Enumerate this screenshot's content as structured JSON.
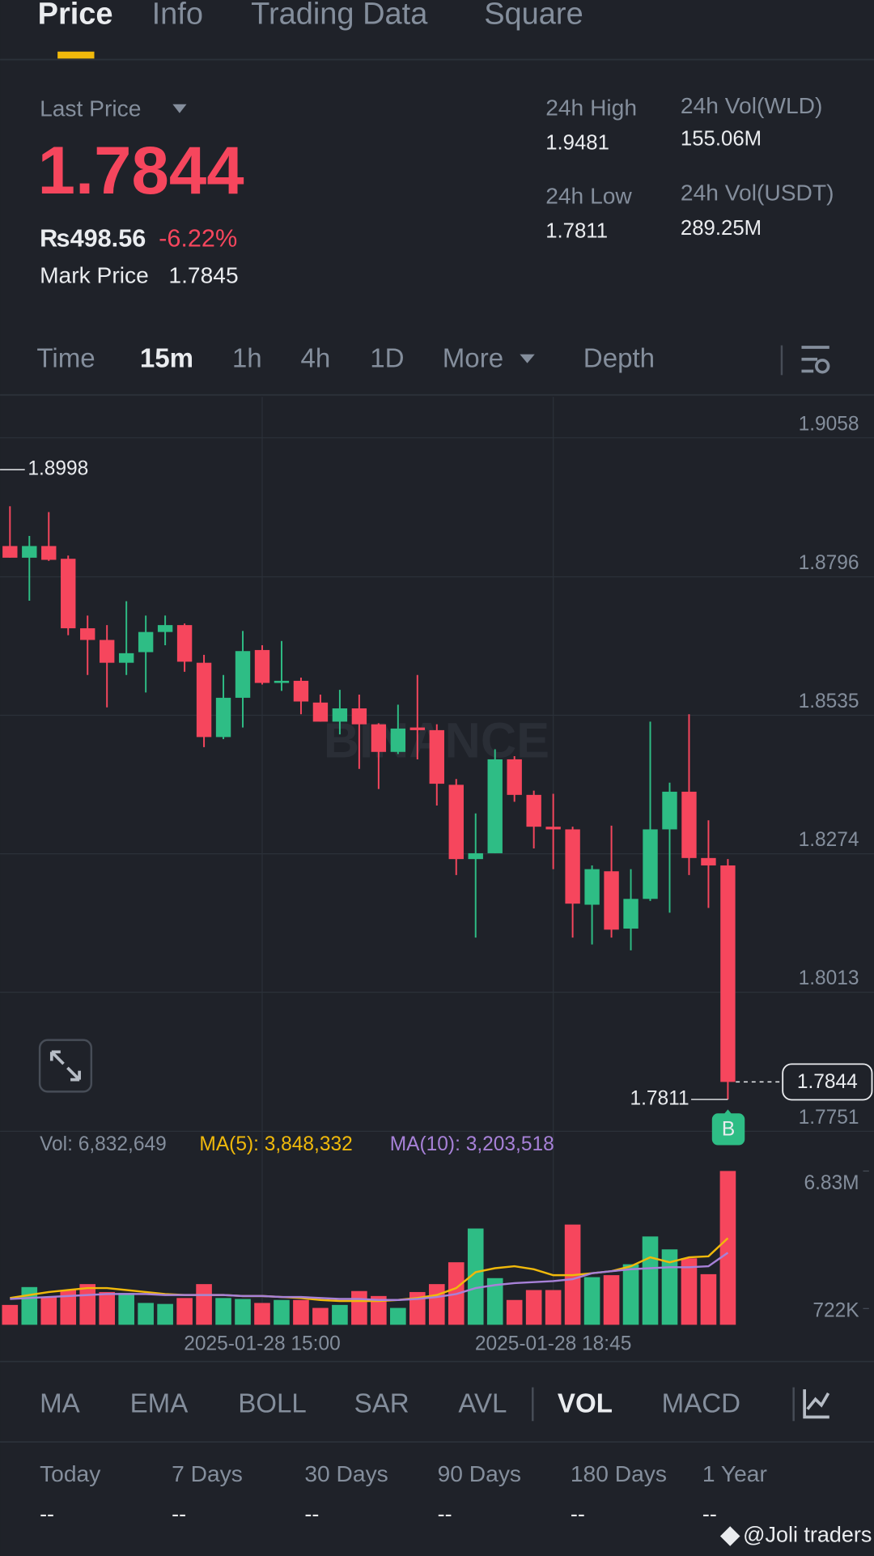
{
  "tabs": {
    "items": [
      "Price",
      "Info",
      "Trading Data",
      "Square"
    ],
    "active": 0
  },
  "ticker": {
    "last_price_label": "Last Price",
    "last_price": "1.7844",
    "fiat_price": "₨498.56",
    "change": "-6.22%",
    "mark_price_label": "Mark Price",
    "mark_price": "1.7845",
    "stats": [
      {
        "label": "24h High",
        "value": "1.9481"
      },
      {
        "label": "24h Low",
        "value": "1.7811"
      },
      {
        "label": "24h Vol(WLD)",
        "value": "155.06M"
      },
      {
        "label": "24h Vol(USDT)",
        "value": "289.25M"
      }
    ]
  },
  "intervals": {
    "items": [
      "Time",
      "15m",
      "1h",
      "4h",
      "1D",
      "More",
      "Depth"
    ],
    "active": 1
  },
  "chart_data": [
    {
      "type": "candlestick",
      "watermark": "BINANCE",
      "categories": [
        null,
        null,
        null,
        null,
        null,
        null,
        null,
        null,
        null,
        null,
        null,
        null,
        null,
        "2025-01-28 15:00",
        null,
        null,
        null,
        null,
        null,
        null,
        null,
        null,
        null,
        null,
        null,
        null,
        null,
        null,
        "2025-01-28 18:45",
        null,
        null,
        null,
        null,
        null,
        null,
        null,
        null,
        null
      ],
      "open": [
        1.8854,
        1.8832,
        1.8854,
        1.883,
        1.8699,
        1.8677,
        1.8634,
        1.8654,
        1.8692,
        1.8705,
        1.8634,
        1.8494,
        1.8568,
        1.8658,
        1.8596,
        1.86,
        1.8559,
        1.8523,
        1.8548,
        1.8518,
        1.8466,
        1.8512,
        1.8507,
        1.8404,
        1.8264,
        1.8275,
        1.8452,
        1.8385,
        1.8325,
        1.832,
        1.8178,
        1.8241,
        1.8133,
        1.8189,
        1.832,
        1.8391,
        1.8266,
        1.8252
      ],
      "high": [
        1.8929,
        1.8873,
        1.8918,
        1.8836,
        1.8723,
        1.8705,
        1.875,
        1.8723,
        1.8723,
        1.8708,
        1.8649,
        1.8611,
        1.8694,
        1.8667,
        1.8675,
        1.8606,
        1.8574,
        1.8583,
        1.8574,
        1.852,
        1.8555,
        1.8611,
        1.8518,
        1.8415,
        1.835,
        1.8471,
        1.8458,
        1.8393,
        1.8387,
        1.8325,
        1.8252,
        1.8327,
        1.8245,
        1.8523,
        1.8408,
        1.8537,
        1.8337,
        1.8264
      ],
      "low": [
        1.8832,
        1.8751,
        1.8826,
        1.8686,
        1.8611,
        1.855,
        1.8611,
        1.8578,
        1.8667,
        1.8617,
        1.8475,
        1.849,
        1.8512,
        1.8593,
        1.8581,
        1.8537,
        1.8523,
        1.8499,
        1.8434,
        1.8396,
        1.8462,
        1.8452,
        1.8365,
        1.8234,
        1.8116,
        1.8275,
        1.8372,
        1.8284,
        1.8245,
        1.8116,
        1.8103,
        1.8116,
        1.8092,
        1.8185,
        1.8163,
        1.8234,
        1.8172,
        1.7811
      ],
      "close": [
        1.8832,
        1.8854,
        1.8828,
        1.8699,
        1.8677,
        1.8634,
        1.8652,
        1.8692,
        1.8705,
        1.8636,
        1.8494,
        1.8568,
        1.8656,
        1.8596,
        1.86,
        1.8561,
        1.8523,
        1.8548,
        1.8518,
        1.8466,
        1.851,
        1.8507,
        1.8406,
        1.8264,
        1.8275,
        1.8452,
        1.8385,
        1.8325,
        1.832,
        1.818,
        1.8245,
        1.8131,
        1.8189,
        1.832,
        1.8391,
        1.8266,
        1.8252,
        1.7844
      ],
      "up_color": "#2ebd85",
      "down_color": "#f6465d",
      "ylim": [
        1.7751,
        1.9135
      ],
      "yticks": [
        1.9058,
        1.8796,
        1.8535,
        1.8274,
        1.8013,
        1.7751
      ],
      "grid": true,
      "high_marker": 1.8998,
      "marker_label": "B"
    },
    {
      "type": "bar",
      "series": [
        {
          "name": "Vol: 6,832,649",
          "values": [
            882000,
            1675000,
            1234000,
            1543000,
            1807000,
            1455000,
            1411000,
            970000,
            926000,
            1190000,
            1807000,
            1190000,
            1146000,
            970000,
            1102000,
            1102000,
            749000,
            882000,
            1499000,
            1278000,
            749000,
            1455000,
            1807000,
            2777000,
            4276000,
            2072000,
            1102000,
            1543000,
            1543000,
            4452000,
            2116000,
            2204000,
            2689000,
            3923000,
            3350000,
            2953000,
            2248000,
            6832649
          ]
        },
        {
          "name": "MA(5): 3,848,332",
          "type": "line",
          "color": "#f0b90b",
          "values": [
            1190000,
            1322000,
            1455000,
            1543000,
            1631000,
            1631000,
            1543000,
            1455000,
            1366000,
            1322000,
            1322000,
            1322000,
            1278000,
            1278000,
            1234000,
            1190000,
            1102000,
            1058000,
            1058000,
            1058000,
            1102000,
            1190000,
            1322000,
            1631000,
            2336000,
            2513000,
            2601000,
            2468000,
            2204000,
            2204000,
            2292000,
            2380000,
            2601000,
            2997000,
            2777000,
            2997000,
            3042000,
            3848332
          ]
        },
        {
          "name": "MA(10): 3,203,518",
          "type": "line",
          "color": "#a781d8",
          "values": [
            1146000,
            1190000,
            1234000,
            1278000,
            1322000,
            1366000,
            1366000,
            1366000,
            1322000,
            1322000,
            1322000,
            1322000,
            1278000,
            1278000,
            1234000,
            1234000,
            1190000,
            1146000,
            1146000,
            1102000,
            1102000,
            1146000,
            1234000,
            1366000,
            1631000,
            1763000,
            1851000,
            1895000,
            1940000,
            2028000,
            2292000,
            2380000,
            2468000,
            2513000,
            2557000,
            2557000,
            2601000,
            3203518
          ]
        }
      ],
      "ylim": [
        0,
        6832649
      ],
      "yticks": [
        {
          "value": 6830000,
          "label": "6.83M"
        },
        {
          "value": 722000,
          "label": "722K"
        }
      ]
    }
  ],
  "indicators": {
    "items": [
      "MA",
      "EMA",
      "BOLL",
      "SAR",
      "AVL",
      "VOL",
      "MACD"
    ],
    "active": 5
  },
  "periods": [
    {
      "label": "Today",
      "value": "--"
    },
    {
      "label": "7 Days",
      "value": "--"
    },
    {
      "label": "30 Days",
      "value": "--"
    },
    {
      "label": "90 Days",
      "value": "--"
    },
    {
      "label": "180 Days",
      "value": "--"
    },
    {
      "label": "1 Year",
      "value": "--"
    }
  ],
  "credit": "@Joli traders"
}
